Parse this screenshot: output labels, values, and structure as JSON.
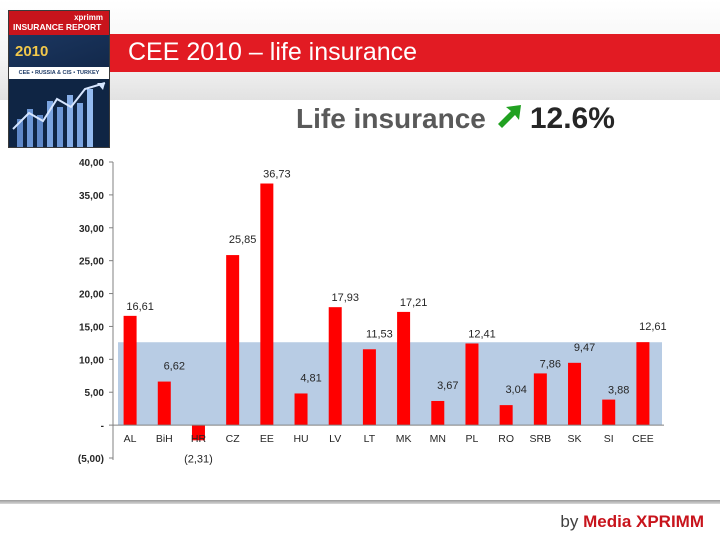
{
  "slide": {
    "title": "CEE 2010 – life insurance",
    "headline_label": "Life insurance",
    "headline_value": "12.6%",
    "headline_arrow_icon": "up-right-arrow-icon",
    "accent_color": "#e21b23",
    "footer_by": "by",
    "footer_name": "Media XPRIMM"
  },
  "cover": {
    "brand": "xprimm",
    "report_title": "INSURANCE REPORT",
    "year": "2010",
    "regions": "CEE • RUSSIA & CIS • TURKEY"
  },
  "chart_data": {
    "type": "bar",
    "categories": [
      "AL",
      "BiH",
      "HR",
      "CZ",
      "EE",
      "HU",
      "LV",
      "LT",
      "MK",
      "MN",
      "PL",
      "RO",
      "SRB",
      "SK",
      "SI",
      "CEE"
    ],
    "values": [
      16.61,
      6.62,
      -2.31,
      25.85,
      36.73,
      4.81,
      17.93,
      11.53,
      17.21,
      3.67,
      12.41,
      3.04,
      7.86,
      9.47,
      3.88,
      12.61
    ],
    "data_labels": [
      "16,61",
      "6,62",
      "(2,31)",
      "25,85",
      "36,73",
      "4,81",
      "17,93",
      "11,53",
      "17,21",
      "3,67",
      "12,41",
      "3,04",
      "7,86",
      "9,47",
      "3,88",
      "12,61"
    ],
    "y_tick_values": [
      -5,
      0,
      5,
      10,
      15,
      20,
      25,
      30,
      35,
      40
    ],
    "y_tick_labels": [
      "(5,00)",
      "-",
      "5,00",
      "10,00",
      "15,00",
      "20,00",
      "25,00",
      "30,00",
      "35,00",
      "40,00"
    ],
    "ylim": [
      -5,
      40
    ],
    "reference_band": [
      0,
      12.6
    ],
    "bar_color": "#ff0000",
    "band_color": "#b8cce4",
    "grid": false,
    "title": "",
    "xlabel": "",
    "ylabel": ""
  }
}
